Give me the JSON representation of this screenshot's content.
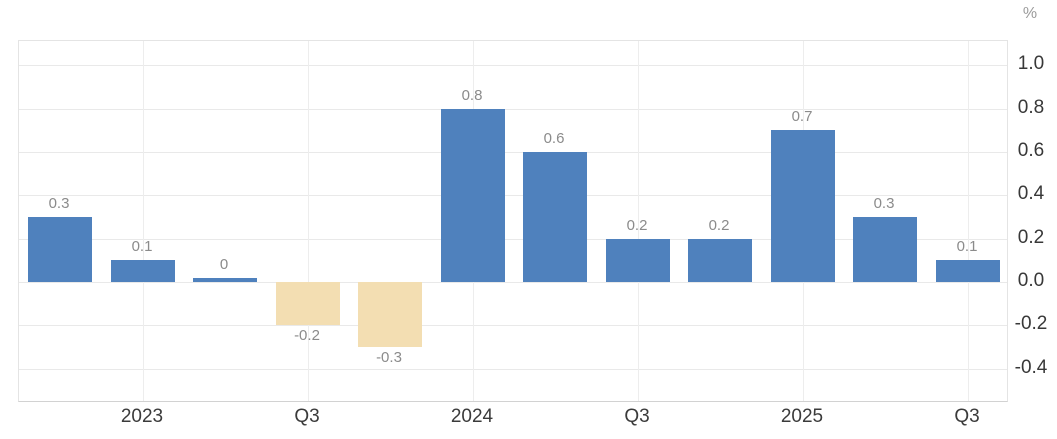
{
  "chart_data": {
    "type": "bar",
    "title": "",
    "unit": "%",
    "bars": [
      {
        "value": 0.3,
        "label": "0.3"
      },
      {
        "value": 0.1,
        "label": "0.1"
      },
      {
        "value": 0,
        "label": "0"
      },
      {
        "value": -0.2,
        "label": "-0.2"
      },
      {
        "value": -0.3,
        "label": "-0.3"
      },
      {
        "value": 0.8,
        "label": "0.8"
      },
      {
        "value": 0.6,
        "label": "0.6"
      },
      {
        "value": 0.2,
        "label": "0.2"
      },
      {
        "value": 0.2,
        "label": "0.2"
      },
      {
        "value": 0.7,
        "label": "0.7"
      },
      {
        "value": 0.3,
        "label": "0.3"
      },
      {
        "value": 0.1,
        "label": "0.1"
      }
    ],
    "x_ticks": [
      {
        "index": 1,
        "label": "2023"
      },
      {
        "index": 3,
        "label": "Q3"
      },
      {
        "index": 5,
        "label": "2024"
      },
      {
        "index": 7,
        "label": "Q3"
      },
      {
        "index": 9,
        "label": "2025"
      },
      {
        "index": 11,
        "label": "Q3"
      }
    ],
    "y_ticks": [
      {
        "value": 1.0,
        "label": "1.0"
      },
      {
        "value": 0.8,
        "label": "0.8"
      },
      {
        "value": 0.6,
        "label": "0.6"
      },
      {
        "value": 0.4,
        "label": "0.4"
      },
      {
        "value": 0.2,
        "label": "0.2"
      },
      {
        "value": 0.0,
        "label": "0.0"
      },
      {
        "value": -0.2,
        "label": "-0.2"
      },
      {
        "value": -0.4,
        "label": "-0.4"
      }
    ],
    "ylim": [
      -0.56,
      1.11
    ],
    "grid": true,
    "legend": "none",
    "y_axis_position": "right",
    "colors": {
      "positive_bar": "#4f81bd",
      "negative_bar": "#f3deb2",
      "grid_line": "#e9e9e9",
      "value_label": "#8b8b8b",
      "axis_label": "#3b3b3b",
      "unit_label": "#9b9b9b"
    }
  }
}
